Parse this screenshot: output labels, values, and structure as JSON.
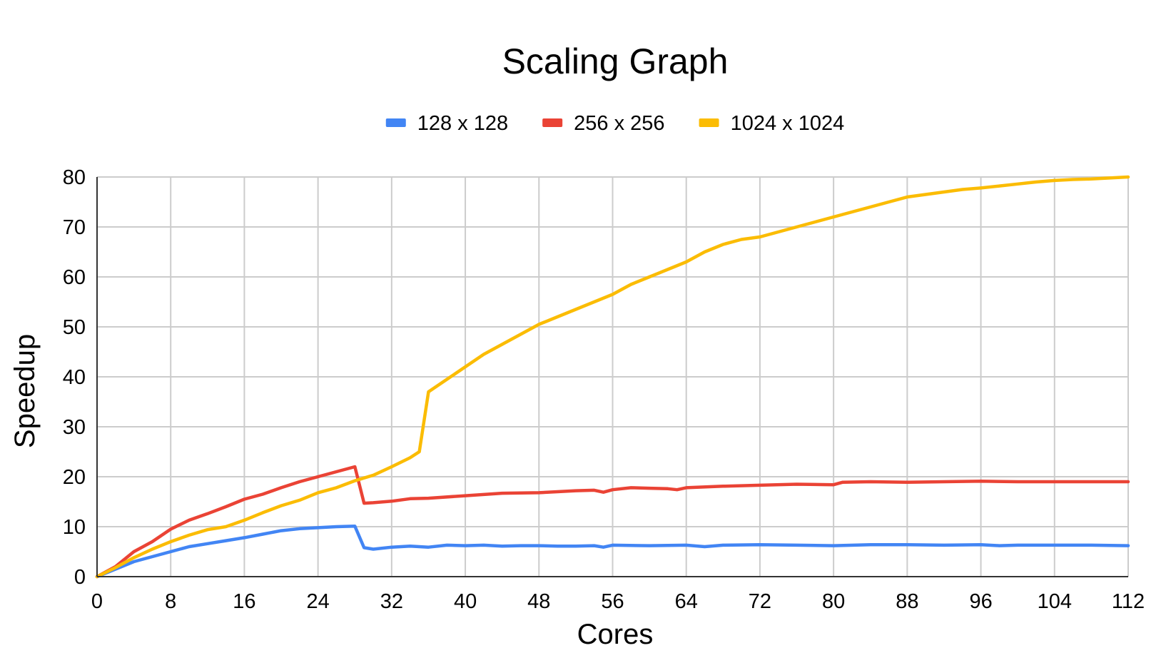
{
  "chart_data": {
    "type": "line",
    "title": "Scaling Graph",
    "xlabel": "Cores",
    "ylabel": "Speedup",
    "xlim": [
      0,
      112
    ],
    "ylim": [
      0,
      80
    ],
    "xticks": [
      0,
      8,
      16,
      24,
      32,
      40,
      48,
      56,
      64,
      72,
      80,
      88,
      96,
      104,
      112
    ],
    "yticks": [
      0,
      10,
      20,
      30,
      40,
      50,
      60,
      70,
      80
    ],
    "grid": true,
    "legend_position": "top",
    "series": [
      {
        "name": "128 x 128",
        "color": "#4285f4",
        "points": [
          [
            0,
            0
          ],
          [
            2,
            1.5
          ],
          [
            4,
            3
          ],
          [
            6,
            4
          ],
          [
            8,
            5
          ],
          [
            10,
            6
          ],
          [
            12,
            6.6
          ],
          [
            14,
            7.2
          ],
          [
            16,
            7.8
          ],
          [
            18,
            8.5
          ],
          [
            20,
            9.2
          ],
          [
            22,
            9.6
          ],
          [
            24,
            9.8
          ],
          [
            26,
            10
          ],
          [
            28,
            10.1
          ],
          [
            29,
            5.8
          ],
          [
            30,
            5.5
          ],
          [
            32,
            5.9
          ],
          [
            34,
            6.1
          ],
          [
            36,
            5.9
          ],
          [
            38,
            6.3
          ],
          [
            40,
            6.2
          ],
          [
            42,
            6.3
          ],
          [
            44,
            6.1
          ],
          [
            46,
            6.2
          ],
          [
            48,
            6.2
          ],
          [
            50,
            6.1
          ],
          [
            52,
            6.1
          ],
          [
            54,
            6.2
          ],
          [
            55,
            5.9
          ],
          [
            56,
            6.3
          ],
          [
            60,
            6.2
          ],
          [
            64,
            6.3
          ],
          [
            66,
            6.0
          ],
          [
            68,
            6.3
          ],
          [
            72,
            6.4
          ],
          [
            76,
            6.3
          ],
          [
            80,
            6.2
          ],
          [
            84,
            6.4
          ],
          [
            88,
            6.4
          ],
          [
            92,
            6.3
          ],
          [
            96,
            6.4
          ],
          [
            98,
            6.2
          ],
          [
            100,
            6.3
          ],
          [
            104,
            6.3
          ],
          [
            108,
            6.3
          ],
          [
            112,
            6.2
          ]
        ]
      },
      {
        "name": "256 x 256",
        "color": "#ea4335",
        "points": [
          [
            0,
            0
          ],
          [
            2,
            2
          ],
          [
            4,
            5
          ],
          [
            6,
            7
          ],
          [
            8,
            9.5
          ],
          [
            10,
            11.3
          ],
          [
            12,
            12.6
          ],
          [
            14,
            14
          ],
          [
            16,
            15.5
          ],
          [
            18,
            16.5
          ],
          [
            20,
            17.8
          ],
          [
            22,
            19
          ],
          [
            24,
            20
          ],
          [
            26,
            21
          ],
          [
            28,
            22
          ],
          [
            29,
            14.7
          ],
          [
            30,
            14.8
          ],
          [
            32,
            15.1
          ],
          [
            34,
            15.6
          ],
          [
            36,
            15.7
          ],
          [
            40,
            16.2
          ],
          [
            44,
            16.7
          ],
          [
            48,
            16.8
          ],
          [
            50,
            17.0
          ],
          [
            52,
            17.2
          ],
          [
            54,
            17.3
          ],
          [
            55,
            16.9
          ],
          [
            56,
            17.4
          ],
          [
            58,
            17.8
          ],
          [
            60,
            17.7
          ],
          [
            62,
            17.6
          ],
          [
            63,
            17.4
          ],
          [
            64,
            17.8
          ],
          [
            68,
            18.1
          ],
          [
            72,
            18.3
          ],
          [
            76,
            18.5
          ],
          [
            80,
            18.4
          ],
          [
            81,
            18.9
          ],
          [
            84,
            19.0
          ],
          [
            88,
            18.9
          ],
          [
            92,
            19.0
          ],
          [
            96,
            19.1
          ],
          [
            100,
            19.0
          ],
          [
            104,
            19.0
          ],
          [
            108,
            19.0
          ],
          [
            112,
            19.0
          ]
        ]
      },
      {
        "name": "1024 x 1024",
        "color": "#fbbc04",
        "points": [
          [
            0,
            0
          ],
          [
            2,
            1.8
          ],
          [
            4,
            3.8
          ],
          [
            6,
            5.5
          ],
          [
            8,
            7
          ],
          [
            10,
            8.3
          ],
          [
            12,
            9.4
          ],
          [
            14,
            10.0
          ],
          [
            16,
            11.3
          ],
          [
            18,
            12.8
          ],
          [
            20,
            14.2
          ],
          [
            22,
            15.3
          ],
          [
            24,
            16.8
          ],
          [
            26,
            17.8
          ],
          [
            28,
            19.2
          ],
          [
            30,
            20.3
          ],
          [
            32,
            22
          ],
          [
            34,
            23.8
          ],
          [
            35,
            25
          ],
          [
            36,
            37
          ],
          [
            38,
            39.5
          ],
          [
            40,
            42
          ],
          [
            42,
            44.5
          ],
          [
            44,
            46.5
          ],
          [
            46,
            48.5
          ],
          [
            48,
            50.5
          ],
          [
            50,
            52
          ],
          [
            52,
            53.5
          ],
          [
            54,
            55
          ],
          [
            56,
            56.5
          ],
          [
            58,
            58.5
          ],
          [
            60,
            60
          ],
          [
            62,
            61.5
          ],
          [
            64,
            63
          ],
          [
            66,
            65
          ],
          [
            68,
            66.5
          ],
          [
            70,
            67.5
          ],
          [
            72,
            68
          ],
          [
            74,
            69
          ],
          [
            76,
            70
          ],
          [
            78,
            71
          ],
          [
            80,
            72
          ],
          [
            82,
            73
          ],
          [
            84,
            74
          ],
          [
            86,
            75
          ],
          [
            88,
            76
          ],
          [
            90,
            76.5
          ],
          [
            92,
            77
          ],
          [
            94,
            77.5
          ],
          [
            96,
            77.8
          ],
          [
            98,
            78.2
          ],
          [
            100,
            78.6
          ],
          [
            102,
            79
          ],
          [
            104,
            79.3
          ],
          [
            106,
            79.5
          ],
          [
            108,
            79.6
          ],
          [
            110,
            79.8
          ],
          [
            112,
            80
          ]
        ]
      }
    ]
  }
}
